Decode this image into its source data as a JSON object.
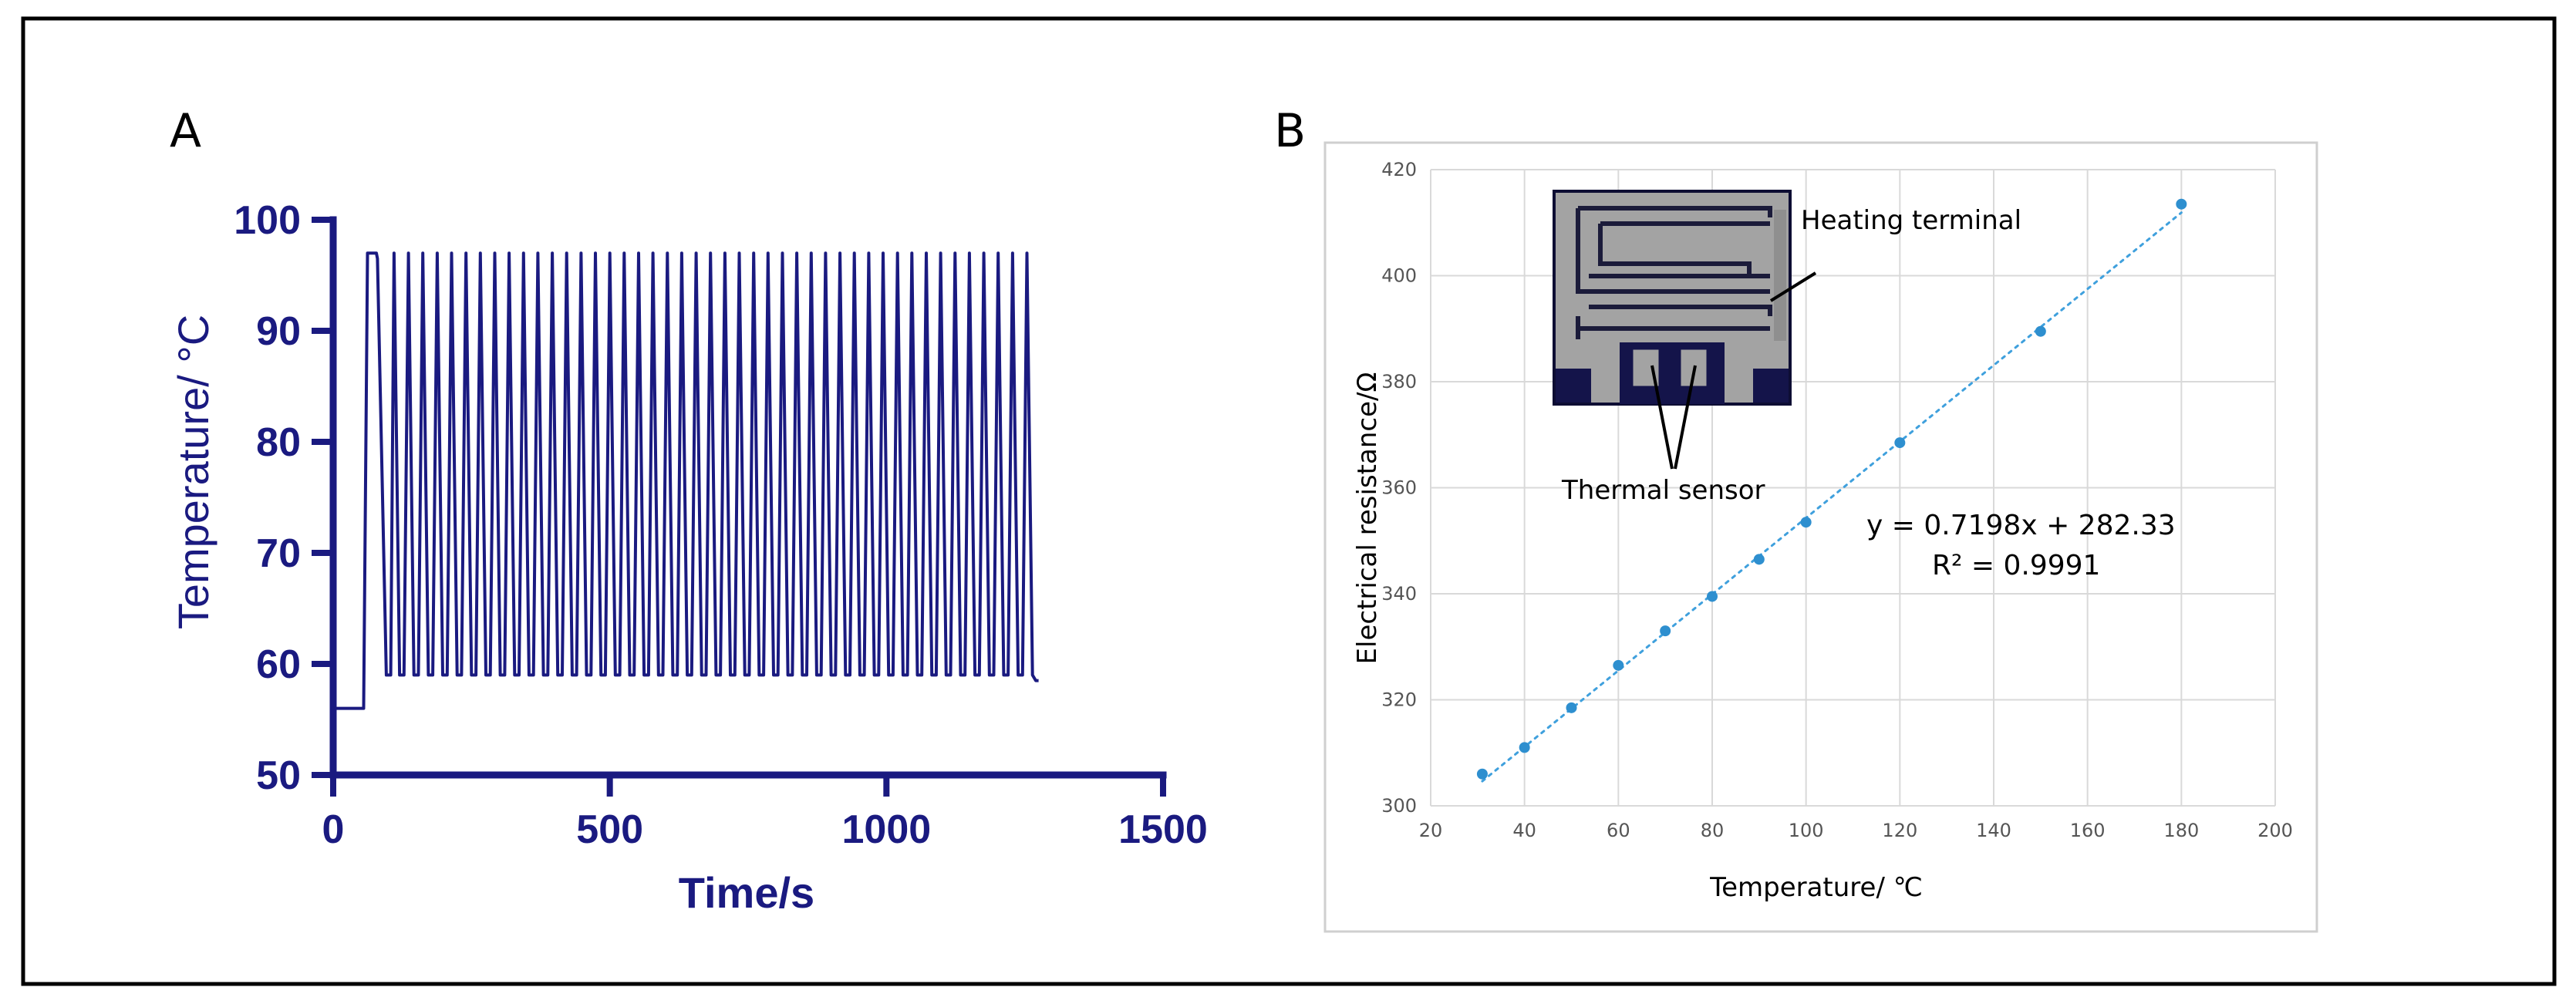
{
  "figure": {
    "panel_a_label": "A",
    "panel_b_label": "B"
  },
  "colors": {
    "panel_a_line": "#1a1a80",
    "panel_b_points": "#2e8fcf",
    "panel_b_trendline": "#3fa0dd"
  },
  "chart_data": [
    {
      "panel": "A",
      "type": "line",
      "title": "",
      "xlabel": "Time/s",
      "ylabel": "Temperature/ °C",
      "xlim": [
        0,
        1500
      ],
      "ylim": [
        50,
        100
      ],
      "xticks": [
        0,
        500,
        1000,
        1500
      ],
      "yticks": [
        50,
        60,
        70,
        80,
        90,
        100
      ],
      "grid": false,
      "series": [
        {
          "name": "temperature",
          "description": "thermal cycling between about 59 and 97 °C after an initial hold",
          "x": [
            0,
            55,
            62,
            68,
            78,
            80,
            96,
            104,
            110,
            120,
            128,
            136,
            146,
            154,
            162,
            172,
            180,
            188,
            198,
            206,
            214,
            224,
            232,
            240,
            250,
            258,
            266,
            276,
            284,
            292,
            302,
            310,
            318,
            328,
            336,
            344,
            354,
            362,
            370,
            380,
            388,
            396,
            406,
            414,
            422,
            432,
            440,
            448,
            458,
            466,
            474,
            484,
            492,
            500,
            510,
            518,
            526,
            536,
            544,
            552,
            562,
            570,
            578,
            588,
            596,
            604,
            614,
            622,
            630,
            640,
            648,
            656,
            666,
            674,
            682,
            692,
            700,
            708,
            718,
            726,
            734,
            744,
            752,
            760,
            770,
            778,
            786,
            796,
            804,
            812,
            822,
            830,
            838,
            848,
            856,
            864,
            874,
            882,
            890,
            900,
            908,
            916,
            926,
            934,
            942,
            952,
            960,
            968,
            978,
            986,
            994,
            1004,
            1012,
            1020,
            1030,
            1038,
            1046,
            1056,
            1064,
            1072,
            1082,
            1090,
            1098,
            1108,
            1116,
            1124,
            1134,
            1142,
            1150,
            1160,
            1168,
            1176,
            1186,
            1194,
            1202,
            1212,
            1220,
            1228,
            1238,
            1246,
            1254,
            1264,
            1270,
            1275
          ],
          "y": [
            56,
            56,
            97,
            97,
            97,
            96.5,
            59,
            59,
            97,
            59,
            59,
            97,
            59,
            59,
            97,
            59,
            59,
            97,
            59,
            59,
            97,
            59,
            59,
            97,
            59,
            59,
            97,
            59,
            59,
            97,
            59,
            59,
            97,
            59,
            59,
            97,
            59,
            59,
            97,
            59,
            59,
            97,
            59,
            59,
            97,
            59,
            59,
            97,
            59,
            59,
            97,
            59,
            59,
            97,
            59,
            59,
            97,
            59,
            59,
            97,
            59,
            59,
            97,
            59,
            59,
            97,
            59,
            59,
            97,
            59,
            59,
            97,
            59,
            59,
            97,
            59,
            59,
            97,
            59,
            59,
            97,
            59,
            59,
            97,
            59,
            59,
            97,
            59,
            59,
            97,
            59,
            59,
            97,
            59,
            59,
            97,
            59,
            59,
            97,
            59,
            59,
            97,
            59,
            59,
            97,
            59,
            59,
            97,
            59,
            59,
            97,
            59,
            59,
            97,
            59,
            59,
            97,
            59,
            59,
            97,
            59,
            59,
            97,
            59,
            59,
            97,
            59,
            59,
            97,
            59,
            59,
            97,
            59,
            59,
            97,
            59,
            59,
            97,
            59,
            59,
            97,
            59,
            58.5,
            58.5
          ]
        }
      ]
    },
    {
      "panel": "B",
      "type": "scatter",
      "title": "",
      "xlabel": "Temperature/ ℃",
      "ylabel": "Electrical resistance/Ω",
      "xlim": [
        20,
        200
      ],
      "ylim": [
        300,
        420
      ],
      "xticks": [
        20,
        40,
        60,
        80,
        100,
        120,
        140,
        160,
        180,
        200
      ],
      "yticks": [
        300,
        320,
        340,
        360,
        380,
        400,
        420
      ],
      "grid": true,
      "series": [
        {
          "name": "resistance",
          "x": [
            31,
            40,
            50,
            60,
            70,
            80,
            90,
            100,
            120,
            150,
            180
          ],
          "y": [
            306,
            311,
            318.5,
            326.5,
            333,
            339.5,
            346.5,
            353.5,
            368.5,
            389.5,
            413.5
          ]
        }
      ],
      "trendline": {
        "slope": 0.7198,
        "intercept": 282.33,
        "x_range": [
          31,
          180
        ],
        "equation_label": "y = 0.7198x + 282.33",
        "r2_label": "R² = 0.9991"
      },
      "inset": {
        "heating_label": "Heating terminal",
        "sensor_label": "Thermal sensor"
      }
    }
  ]
}
